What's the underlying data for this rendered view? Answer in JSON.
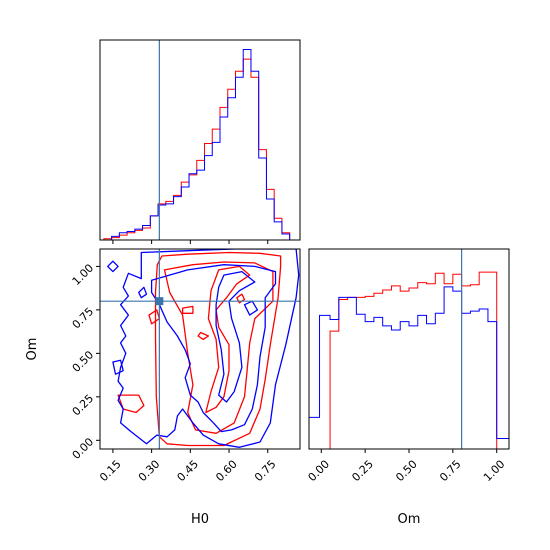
{
  "chart_data": {
    "type": "corner",
    "parameters": [
      "H0",
      "Om"
    ],
    "truths": {
      "H0": 0.33,
      "Om": 0.8
    },
    "series": [
      {
        "color": "#ff0000"
      },
      {
        "color": "#0000ff"
      }
    ],
    "panels": [
      {
        "id": "hist_H0",
        "type": "histogram",
        "parameter": "H0",
        "xlim": [
          0.1,
          0.875
        ],
        "bin_edges": [
          0.115,
          0.145,
          0.175,
          0.205,
          0.235,
          0.265,
          0.295,
          0.325,
          0.355,
          0.385,
          0.415,
          0.445,
          0.475,
          0.505,
          0.535,
          0.565,
          0.595,
          0.625,
          0.655,
          0.685,
          0.715,
          0.745,
          0.775,
          0.805,
          0.835
        ],
        "red": [
          1,
          2,
          4,
          6,
          8,
          10,
          20,
          30,
          32,
          37,
          48,
          54,
          66,
          80,
          92,
          110,
          125,
          140,
          150,
          135,
          75,
          42,
          18,
          6
        ],
        "blue": [
          0,
          3,
          6,
          7,
          9,
          12,
          20,
          29,
          30,
          36,
          44,
          55,
          58,
          70,
          81,
          102,
          118,
          135,
          158,
          140,
          68,
          34,
          15,
          5
        ],
        "yticks": false
      },
      {
        "id": "contour_H0_Om",
        "type": "contour",
        "x_param": "H0",
        "y_param": "Om",
        "xlim": [
          0.1,
          0.875
        ],
        "ylim": [
          -0.05,
          1.1
        ],
        "xticks": [
          "0.15",
          "0.30",
          "0.45",
          "0.60",
          "0.75"
        ],
        "xtick_values": [
          0.15,
          0.3,
          0.45,
          0.6,
          0.75
        ],
        "yticks": [
          "0.00",
          "0.25",
          "0.50",
          "0.75",
          "1.00"
        ],
        "ytick_values": [
          0.0,
          0.25,
          0.5,
          0.75,
          1.0
        ],
        "xlabel": "H0",
        "ylabel": "Om",
        "red_contours": [
          [
            [
              0.322,
              1.01
            ],
            [
              0.34,
              1.06
            ],
            [
              0.44,
              1.07
            ],
            [
              0.6,
              1.08
            ],
            [
              0.72,
              1.075
            ],
            [
              0.8,
              1.06
            ],
            [
              0.8,
              1.0
            ],
            [
              0.79,
              0.82
            ],
            [
              0.76,
              0.55
            ],
            [
              0.74,
              0.35
            ],
            [
              0.72,
              0.18
            ],
            [
              0.68,
              0.04
            ],
            [
              0.58,
              -0.03
            ],
            [
              0.44,
              -0.03
            ],
            [
              0.36,
              -0.02
            ],
            [
              0.33,
              0.02
            ],
            [
              0.318,
              0.25
            ],
            [
              0.315,
              0.6
            ],
            [
              0.315,
              0.85
            ],
            [
              0.322,
              1.01
            ]
          ],
          [
            [
              0.35,
              0.98
            ],
            [
              0.46,
              1.01
            ],
            [
              0.58,
              1.025
            ],
            [
              0.7,
              1.02
            ],
            [
              0.77,
              0.97
            ],
            [
              0.77,
              0.8
            ],
            [
              0.7,
              0.7
            ],
            [
              0.68,
              0.56
            ],
            [
              0.67,
              0.4
            ],
            [
              0.66,
              0.25
            ],
            [
              0.62,
              0.1
            ],
            [
              0.55,
              0.04
            ],
            [
              0.47,
              0.06
            ],
            [
              0.44,
              0.16
            ],
            [
              0.46,
              0.32
            ],
            [
              0.44,
              0.5
            ],
            [
              0.42,
              0.72
            ],
            [
              0.37,
              0.85
            ],
            [
              0.35,
              0.98
            ]
          ],
          [
            [
              0.56,
              0.98
            ],
            [
              0.64,
              1.0
            ],
            [
              0.68,
              0.95
            ],
            [
              0.63,
              0.9
            ],
            [
              0.59,
              0.82
            ],
            [
              0.55,
              0.75
            ],
            [
              0.56,
              0.65
            ],
            [
              0.6,
              0.55
            ],
            [
              0.6,
              0.4
            ],
            [
              0.58,
              0.25
            ],
            [
              0.55,
              0.19
            ],
            [
              0.51,
              0.16
            ],
            [
              0.53,
              0.28
            ],
            [
              0.56,
              0.42
            ],
            [
              0.55,
              0.58
            ],
            [
              0.52,
              0.7
            ],
            [
              0.53,
              0.86
            ],
            [
              0.56,
              0.98
            ]
          ],
          [
            [
              0.42,
              0.76
            ],
            [
              0.46,
              0.77
            ],
            [
              0.46,
              0.73
            ],
            [
              0.42,
              0.73
            ],
            [
              0.42,
              0.76
            ]
          ],
          [
            [
              0.49,
              0.62
            ],
            [
              0.52,
              0.6
            ],
            [
              0.5,
              0.58
            ],
            [
              0.48,
              0.6
            ],
            [
              0.49,
              0.62
            ]
          ],
          [
            [
              0.63,
              0.82
            ],
            [
              0.65,
              0.84
            ],
            [
              0.66,
              0.81
            ],
            [
              0.64,
              0.79
            ],
            [
              0.63,
              0.82
            ]
          ],
          [
            [
              0.17,
              0.26
            ],
            [
              0.25,
              0.26
            ],
            [
              0.27,
              0.2
            ],
            [
              0.24,
              0.16
            ],
            [
              0.19,
              0.18
            ],
            [
              0.17,
              0.26
            ]
          ],
          [
            [
              0.29,
              0.72
            ],
            [
              0.32,
              0.75
            ],
            [
              0.33,
              0.7
            ],
            [
              0.3,
              0.67
            ],
            [
              0.29,
              0.72
            ]
          ]
        ],
        "blue_contours": [
          [
            [
              0.26,
              0.93
            ],
            [
              0.26,
              1.08
            ],
            [
              0.44,
              1.09
            ],
            [
              0.62,
              1.1
            ],
            [
              0.86,
              1.1
            ],
            [
              0.87,
              0.95
            ],
            [
              0.86,
              0.82
            ],
            [
              0.82,
              0.55
            ],
            [
              0.78,
              0.32
            ],
            [
              0.76,
              0.1
            ],
            [
              0.72,
              -0.01
            ],
            [
              0.64,
              -0.04
            ],
            [
              0.56,
              -0.02
            ],
            [
              0.5,
              0.03
            ],
            [
              0.46,
              0.1
            ],
            [
              0.42,
              0.18
            ],
            [
              0.4,
              0.14
            ],
            [
              0.39,
              0.06
            ],
            [
              0.36,
              0.02
            ],
            [
              0.32,
              0.03
            ],
            [
              0.28,
              -0.02
            ],
            [
              0.22,
              0.05
            ],
            [
              0.18,
              0.1
            ],
            [
              0.19,
              0.18
            ],
            [
              0.17,
              0.23
            ],
            [
              0.19,
              0.3
            ],
            [
              0.17,
              0.34
            ],
            [
              0.18,
              0.42
            ],
            [
              0.2,
              0.5
            ],
            [
              0.18,
              0.56
            ],
            [
              0.2,
              0.6
            ],
            [
              0.18,
              0.66
            ],
            [
              0.21,
              0.72
            ],
            [
              0.18,
              0.78
            ],
            [
              0.21,
              0.83
            ],
            [
              0.19,
              0.88
            ],
            [
              0.21,
              0.96
            ],
            [
              0.26,
              0.93
            ]
          ],
          [
            [
              0.3,
              0.92
            ],
            [
              0.44,
              0.98
            ],
            [
              0.58,
              1.01
            ],
            [
              0.7,
              1.0
            ],
            [
              0.78,
              0.97
            ],
            [
              0.78,
              0.9
            ],
            [
              0.74,
              0.82
            ],
            [
              0.74,
              0.65
            ],
            [
              0.72,
              0.48
            ],
            [
              0.71,
              0.32
            ],
            [
              0.69,
              0.18
            ],
            [
              0.66,
              0.09
            ],
            [
              0.61,
              0.06
            ],
            [
              0.57,
              0.05
            ],
            [
              0.54,
              0.1
            ],
            [
              0.5,
              0.16
            ],
            [
              0.48,
              0.22
            ],
            [
              0.45,
              0.26
            ],
            [
              0.43,
              0.36
            ],
            [
              0.45,
              0.44
            ],
            [
              0.43,
              0.52
            ],
            [
              0.4,
              0.6
            ],
            [
              0.36,
              0.68
            ],
            [
              0.33,
              0.78
            ],
            [
              0.3,
              0.85
            ],
            [
              0.3,
              0.92
            ]
          ],
          [
            [
              0.58,
              0.95
            ],
            [
              0.65,
              0.97
            ],
            [
              0.7,
              0.91
            ],
            [
              0.64,
              0.86
            ],
            [
              0.6,
              0.8
            ],
            [
              0.61,
              0.7
            ],
            [
              0.64,
              0.56
            ],
            [
              0.65,
              0.42
            ],
            [
              0.62,
              0.28
            ],
            [
              0.59,
              0.22
            ],
            [
              0.56,
              0.26
            ],
            [
              0.58,
              0.38
            ],
            [
              0.57,
              0.52
            ],
            [
              0.55,
              0.66
            ],
            [
              0.55,
              0.78
            ],
            [
              0.56,
              0.88
            ],
            [
              0.58,
              0.95
            ]
          ],
          [
            [
              0.25,
              0.85
            ],
            [
              0.27,
              0.88
            ],
            [
              0.28,
              0.84
            ],
            [
              0.26,
              0.82
            ],
            [
              0.25,
              0.85
            ]
          ],
          [
            [
              0.13,
              1.0
            ],
            [
              0.15,
              1.03
            ],
            [
              0.17,
              1.0
            ],
            [
              0.15,
              0.97
            ],
            [
              0.13,
              1.0
            ]
          ],
          [
            [
              0.15,
              0.45
            ],
            [
              0.18,
              0.46
            ],
            [
              0.19,
              0.4
            ],
            [
              0.16,
              0.38
            ],
            [
              0.15,
              0.45
            ]
          ],
          [
            [
              0.66,
              0.78
            ],
            [
              0.69,
              0.8
            ],
            [
              0.71,
              0.75
            ],
            [
              0.68,
              0.72
            ],
            [
              0.66,
              0.78
            ]
          ]
        ]
      },
      {
        "id": "hist_Om",
        "type": "histogram",
        "parameter": "Om",
        "xlim": [
          -0.07,
          1.07
        ],
        "xticks": [
          "0.00",
          "0.25",
          "0.50",
          "0.75",
          "1.00"
        ],
        "xtick_values": [
          0.0,
          0.25,
          0.5,
          0.75,
          1.0
        ],
        "xlabel": "Om",
        "bin_edges": [
          0.0,
          0.05,
          0.1,
          0.15,
          0.2,
          0.25,
          0.3,
          0.35,
          0.4,
          0.45,
          0.5,
          0.55,
          0.6,
          0.65,
          0.7,
          0.75,
          0.8,
          0.85,
          0.9,
          0.95,
          1.0
        ],
        "red": [
          0,
          112,
          142,
          144,
          144,
          145,
          148,
          151,
          155,
          150,
          153,
          158,
          157,
          167,
          157,
          166,
          155,
          156,
          168,
          168
        ],
        "blue_bin_edges": [
          -0.075,
          -0.01,
          0.05,
          0.1,
          0.15,
          0.2,
          0.25,
          0.3,
          0.35,
          0.4,
          0.45,
          0.5,
          0.55,
          0.6,
          0.65,
          0.7,
          0.75,
          0.8,
          0.85,
          0.9,
          0.95,
          1.0,
          1.07
        ],
        "blue": [
          30,
          127,
          123,
          144,
          144,
          128,
          121,
          125,
          117,
          113,
          121,
          117,
          127,
          119,
          129,
          154,
          150,
          129,
          131,
          133,
          121,
          10
        ],
        "yticks": false
      }
    ]
  }
}
